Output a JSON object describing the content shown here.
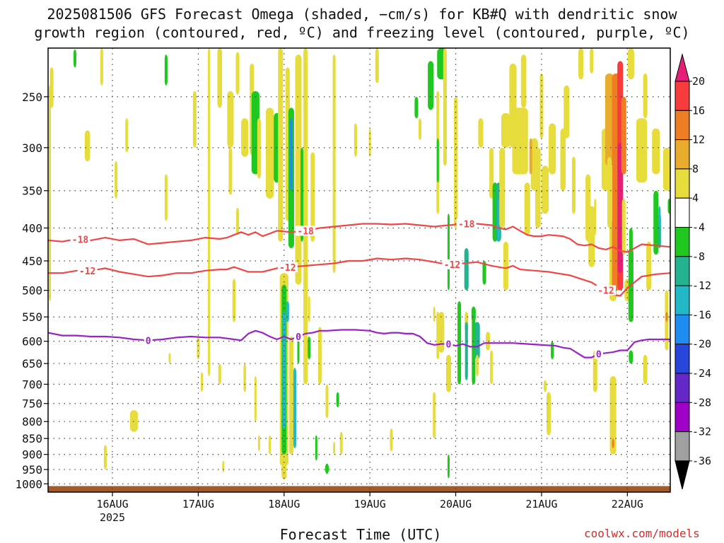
{
  "title_line1": "2025081506 GFS Forecast Omega (shaded, −cm/s) for KB#Q with dendritic snow",
  "title_line2": "growth region (contoured, red, ºC) and freezing level (contoured, purple, ºC)",
  "xlabel": "Forecast Time (UTC)",
  "credit": "coolwx.com/models",
  "chart_data": {
    "type": "heatmap",
    "y_axis": {
      "quantity": "pressure (hPa)",
      "scale": "log",
      "reversed": true,
      "range": [
        210,
        1030
      ],
      "ticks": [
        250,
        300,
        350,
        400,
        450,
        500,
        550,
        600,
        650,
        700,
        750,
        800,
        850,
        900,
        950,
        1000
      ],
      "tick_labels": [
        "250",
        "300",
        "350",
        "400",
        "450",
        "500",
        "550",
        "600",
        "650",
        "700",
        "750",
        "800",
        "850",
        "900",
        "950",
        "1000"
      ]
    },
    "x_axis": {
      "quantity": "forecast hour",
      "range": [
        0,
        174
      ],
      "ticks": [
        18,
        42,
        66,
        90,
        114,
        138,
        162
      ],
      "tick_labels": [
        "16AUG",
        "17AUG",
        "18AUG",
        "19AUG",
        "20AUG",
        "21AUG",
        "22AUG"
      ],
      "sub_label": "2025"
    },
    "grid": true,
    "colorbar": {
      "levels": [
        "20",
        "16",
        "12",
        "8",
        "4",
        "-4",
        "-8",
        "-12",
        "-16",
        "-20",
        "-24",
        "-28",
        "-32",
        "-36"
      ],
      "colors": [
        "#e61e78",
        "#f83c3c",
        "#ef7d23",
        "#e8ab2c",
        "#e6dc3c",
        "#ffffff",
        "#1ec81e",
        "#22b491",
        "#21b9c8",
        "#1e8cf0",
        "#2846dc",
        "#6428c8",
        "#a000c8",
        "#a0a0a0",
        "#000000"
      ]
    },
    "contours": {
      "dgz_top": {
        "value": -18,
        "label": "-18",
        "color": "#f04646",
        "label_x": [
          9,
          72,
          117
        ],
        "points": [
          [
            0,
            418
          ],
          [
            4,
            420
          ],
          [
            8,
            416
          ],
          [
            12,
            418
          ],
          [
            16,
            414
          ],
          [
            20,
            418
          ],
          [
            24,
            416
          ],
          [
            28,
            424
          ],
          [
            32,
            422
          ],
          [
            36,
            420
          ],
          [
            40,
            418
          ],
          [
            44,
            414
          ],
          [
            48,
            416
          ],
          [
            50,
            414
          ],
          [
            52,
            410
          ],
          [
            54,
            406
          ],
          [
            56,
            410
          ],
          [
            58,
            406
          ],
          [
            60,
            412
          ],
          [
            62,
            408
          ],
          [
            64,
            404
          ],
          [
            68,
            406
          ],
          [
            72,
            404
          ],
          [
            76,
            400
          ],
          [
            80,
            398
          ],
          [
            84,
            396
          ],
          [
            88,
            394
          ],
          [
            92,
            394
          ],
          [
            96,
            395
          ],
          [
            100,
            394
          ],
          [
            104,
            396
          ],
          [
            108,
            398
          ],
          [
            112,
            396
          ],
          [
            116,
            394
          ],
          [
            120,
            394
          ],
          [
            124,
            396
          ],
          [
            126,
            400
          ],
          [
            128,
            402
          ],
          [
            130,
            398
          ],
          [
            132,
            404
          ],
          [
            134,
            410
          ],
          [
            136,
            412
          ],
          [
            138,
            412
          ],
          [
            140,
            410
          ],
          [
            144,
            412
          ],
          [
            146,
            416
          ],
          [
            148,
            424
          ],
          [
            150,
            426
          ],
          [
            152,
            424
          ],
          [
            154,
            430
          ],
          [
            156,
            432
          ],
          [
            158,
            428
          ],
          [
            160,
            434
          ],
          [
            162,
            436
          ],
          [
            166,
            424
          ],
          [
            170,
            426
          ],
          [
            174,
            428
          ]
        ]
      },
      "dgz_bottom": {
        "value": -12,
        "label": "-12",
        "color": "#f04646",
        "label_x": [
          11,
          67,
          113,
          156
        ],
        "points": [
          [
            0,
            470
          ],
          [
            4,
            470
          ],
          [
            8,
            466
          ],
          [
            12,
            466
          ],
          [
            16,
            462
          ],
          [
            20,
            468
          ],
          [
            24,
            472
          ],
          [
            28,
            476
          ],
          [
            32,
            474
          ],
          [
            36,
            470
          ],
          [
            40,
            470
          ],
          [
            44,
            466
          ],
          [
            48,
            464
          ],
          [
            50,
            464
          ],
          [
            52,
            460
          ],
          [
            54,
            464
          ],
          [
            56,
            468
          ],
          [
            60,
            468
          ],
          [
            64,
            462
          ],
          [
            68,
            460
          ],
          [
            72,
            458
          ],
          [
            76,
            456
          ],
          [
            80,
            454
          ],
          [
            84,
            450
          ],
          [
            88,
            450
          ],
          [
            92,
            446
          ],
          [
            96,
            448
          ],
          [
            100,
            446
          ],
          [
            104,
            448
          ],
          [
            108,
            452
          ],
          [
            112,
            456
          ],
          [
            116,
            454
          ],
          [
            120,
            452
          ],
          [
            124,
            458
          ],
          [
            128,
            462
          ],
          [
            130,
            458
          ],
          [
            132,
            464
          ],
          [
            136,
            466
          ],
          [
            140,
            468
          ],
          [
            142,
            470
          ],
          [
            146,
            474
          ],
          [
            148,
            478
          ],
          [
            150,
            482
          ],
          [
            152,
            486
          ],
          [
            154,
            494
          ],
          [
            156,
            500
          ],
          [
            158,
            508
          ],
          [
            160,
            510
          ],
          [
            162,
            496
          ],
          [
            166,
            476
          ],
          [
            170,
            472
          ],
          [
            174,
            470
          ]
        ]
      },
      "freezing": {
        "value": 0,
        "label": "0",
        "color": "#9a20c8",
        "label_x": [
          28,
          70,
          112,
          154
        ],
        "points": [
          [
            0,
            582
          ],
          [
            4,
            588
          ],
          [
            8,
            588
          ],
          [
            12,
            590
          ],
          [
            16,
            590
          ],
          [
            20,
            592
          ],
          [
            24,
            596
          ],
          [
            28,
            598
          ],
          [
            32,
            596
          ],
          [
            36,
            592
          ],
          [
            40,
            590
          ],
          [
            44,
            592
          ],
          [
            48,
            592
          ],
          [
            52,
            596
          ],
          [
            54,
            598
          ],
          [
            56,
            584
          ],
          [
            58,
            578
          ],
          [
            60,
            582
          ],
          [
            62,
            590
          ],
          [
            64,
            596
          ],
          [
            66,
            590
          ],
          [
            68,
            596
          ],
          [
            70,
            590
          ],
          [
            72,
            584
          ],
          [
            74,
            582
          ],
          [
            76,
            578
          ],
          [
            78,
            578
          ],
          [
            82,
            576
          ],
          [
            86,
            576
          ],
          [
            90,
            578
          ],
          [
            92,
            582
          ],
          [
            94,
            584
          ],
          [
            96,
            582
          ],
          [
            98,
            582
          ],
          [
            100,
            584
          ],
          [
            102,
            584
          ],
          [
            104,
            590
          ],
          [
            106,
            604
          ],
          [
            108,
            608
          ],
          [
            110,
            606
          ],
          [
            112,
            606
          ],
          [
            114,
            610
          ],
          [
            116,
            606
          ],
          [
            118,
            612
          ],
          [
            120,
            612
          ],
          [
            122,
            604
          ],
          [
            126,
            604
          ],
          [
            130,
            604
          ],
          [
            134,
            606
          ],
          [
            138,
            608
          ],
          [
            142,
            610
          ],
          [
            144,
            614
          ],
          [
            146,
            616
          ],
          [
            148,
            626
          ],
          [
            150,
            636
          ],
          [
            152,
            636
          ],
          [
            154,
            628
          ],
          [
            156,
            626
          ],
          [
            158,
            624
          ],
          [
            160,
            620
          ],
          [
            162,
            620
          ],
          [
            164,
            602
          ],
          [
            166,
            598
          ],
          [
            168,
            596
          ],
          [
            170,
            596
          ],
          [
            174,
            596
          ]
        ]
      }
    }
  }
}
